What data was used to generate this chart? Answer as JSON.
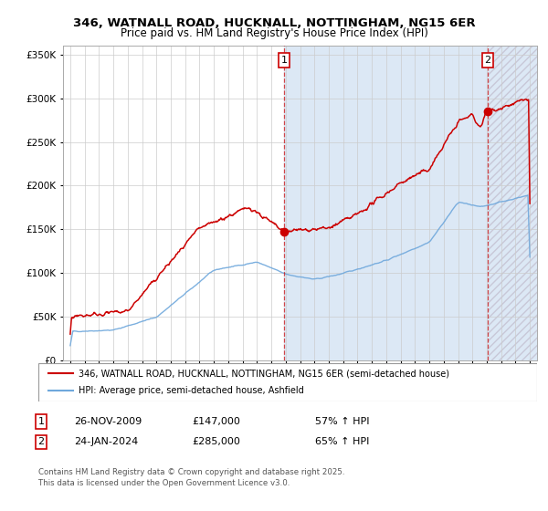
{
  "title": "346, WATNALL ROAD, HUCKNALL, NOTTINGHAM, NG15 6ER",
  "subtitle": "Price paid vs. HM Land Registry's House Price Index (HPI)",
  "legend_line1": "346, WATNALL ROAD, HUCKNALL, NOTTINGHAM, NG15 6ER (semi-detached house)",
  "legend_line2": "HPI: Average price, semi-detached house, Ashfield",
  "annotation1_label": "1",
  "annotation1_date": "26-NOV-2009",
  "annotation1_price": "£147,000",
  "annotation1_hpi": "57% ↑ HPI",
  "annotation2_label": "2",
  "annotation2_date": "24-JAN-2024",
  "annotation2_price": "£285,000",
  "annotation2_hpi": "65% ↑ HPI",
  "footnote": "Contains HM Land Registry data © Crown copyright and database right 2025.\nThis data is licensed under the Open Government Licence v3.0.",
  "red_color": "#cc0000",
  "blue_color": "#6fa8dc",
  "bg_blue": "#dce8f5",
  "bg_hatch_color": "#c8c8d8",
  "vline_color": "#cc0000",
  "marker1_x": 2009.9,
  "marker1_y": 147000,
  "marker2_x": 2024.07,
  "marker2_y": 285000,
  "vline1_x": 2009.9,
  "vline2_x": 2024.07,
  "ylim": [
    0,
    360000
  ],
  "xlim": [
    1994.5,
    2027.5
  ]
}
